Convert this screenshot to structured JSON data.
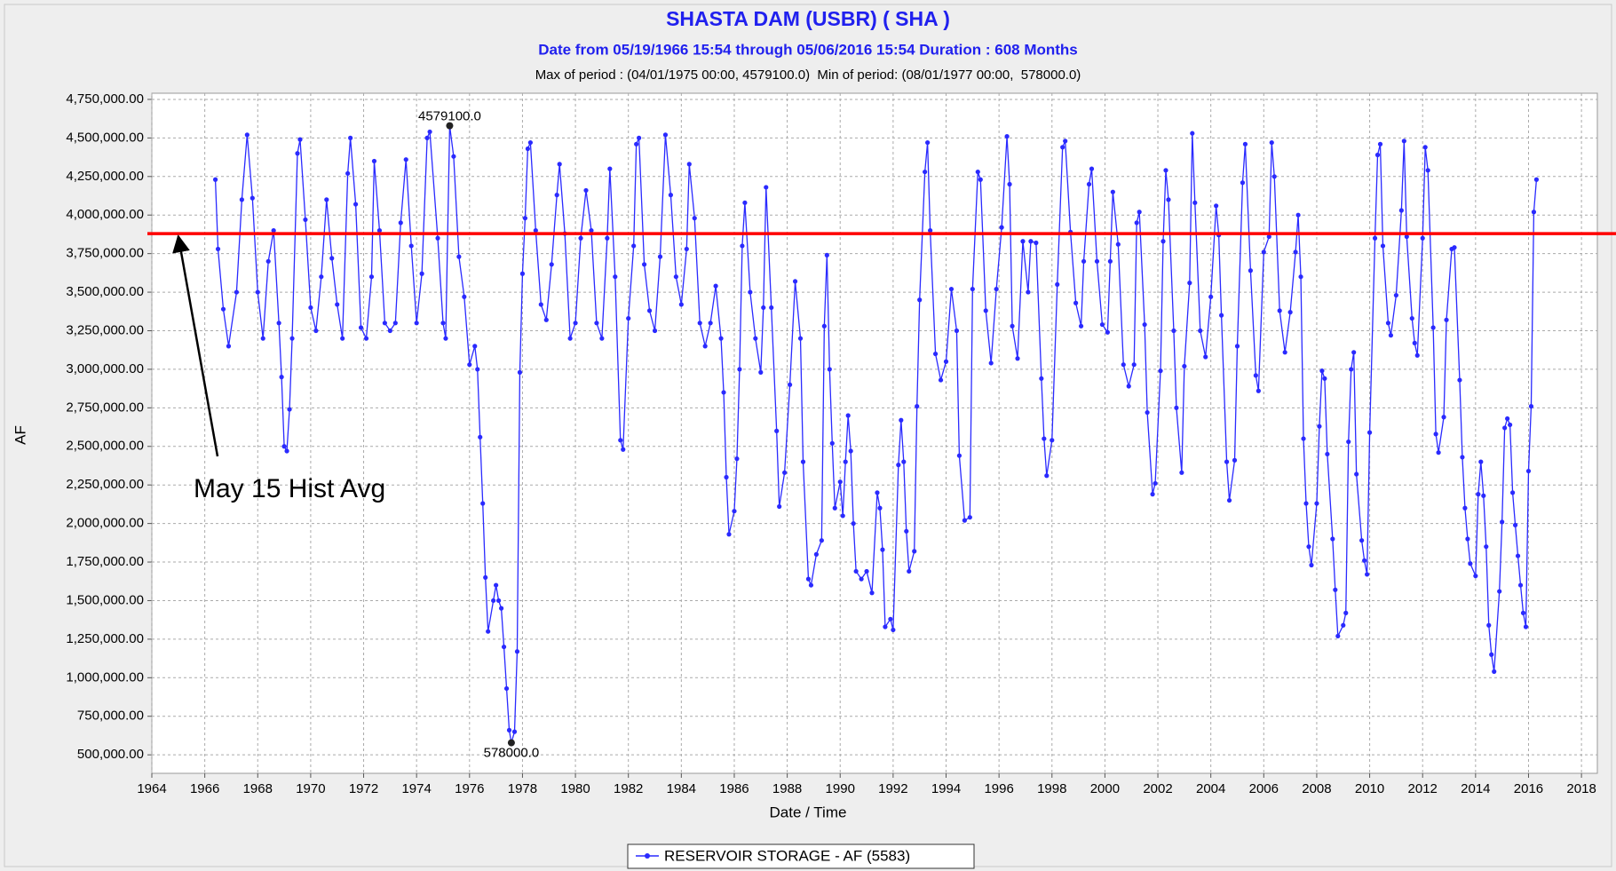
{
  "chart_data": {
    "type": "line",
    "title": "SHASTA DAM  (USBR) ( SHA )",
    "subtitle": "Date from 05/19/1966 15:54 through 05/06/2016 15:54 Duration : 608 Months",
    "period_note": "Max of period : (04/01/1975 00:00, 4579100.0)  Min of period: (08/01/1977 00:00,  578000.0)",
    "x_label": "Date / Time",
    "y_label": "AF",
    "xlim": [
      1964,
      2018.6
    ],
    "ylim": [
      380000,
      4790000
    ],
    "xticks": [
      1964,
      1966,
      1968,
      1970,
      1972,
      1974,
      1976,
      1978,
      1980,
      1982,
      1984,
      1986,
      1988,
      1990,
      1992,
      1994,
      1996,
      1998,
      2000,
      2002,
      2004,
      2006,
      2008,
      2010,
      2012,
      2014,
      2016,
      2018
    ],
    "yticks": [
      {
        "value": 500000,
        "label": "500,000.00"
      },
      {
        "value": 750000,
        "label": "750,000.00"
      },
      {
        "value": 1000000,
        "label": "1,000,000.00"
      },
      {
        "value": 1250000,
        "label": "1,250,000.00"
      },
      {
        "value": 1500000,
        "label": "1,500,000.00"
      },
      {
        "value": 1750000,
        "label": "1,750,000.00"
      },
      {
        "value": 2000000,
        "label": "2,000,000.00"
      },
      {
        "value": 2250000,
        "label": "2,250,000.00"
      },
      {
        "value": 2500000,
        "label": "2,500,000.00"
      },
      {
        "value": 2750000,
        "label": "2,750,000.00"
      },
      {
        "value": 3000000,
        "label": "3,000,000.00"
      },
      {
        "value": 3250000,
        "label": "3,250,000.00"
      },
      {
        "value": 3500000,
        "label": "3,500,000.00"
      },
      {
        "value": 3750000,
        "label": "3,750,000.00"
      },
      {
        "value": 4000000,
        "label": "4,000,000.00"
      },
      {
        "value": 4250000,
        "label": "4,250,000.00"
      },
      {
        "value": 4500000,
        "label": "4,500,000.00"
      },
      {
        "value": 4750000,
        "label": "4,750,000.00"
      }
    ],
    "grid": true,
    "legend": "bottom",
    "series": [
      {
        "name": "RESERVOIR STORAGE - AF (5583)",
        "color": "#2a2aff",
        "x": [
          1966.4,
          1966.5,
          1966.7,
          1966.9,
          1967.2,
          1967.4,
          1967.6,
          1967.8,
          1968.0,
          1968.2,
          1968.4,
          1968.6,
          1968.8,
          1968.9,
          1969.0,
          1969.1,
          1969.2,
          1969.3,
          1969.5,
          1969.6,
          1969.8,
          1970.0,
          1970.2,
          1970.4,
          1970.6,
          1970.8,
          1971.0,
          1971.2,
          1971.4,
          1971.5,
          1971.7,
          1971.9,
          1972.1,
          1972.3,
          1972.4,
          1972.6,
          1972.8,
          1973.0,
          1973.2,
          1973.4,
          1973.6,
          1973.8,
          1974.0,
          1974.2,
          1974.4,
          1974.5,
          1974.8,
          1975.0,
          1975.1,
          1975.25,
          1975.4,
          1975.6,
          1975.8,
          1976.0,
          1976.2,
          1976.3,
          1976.4,
          1976.5,
          1976.6,
          1976.7,
          1976.9,
          1977.0,
          1977.1,
          1977.2,
          1977.3,
          1977.4,
          1977.5,
          1977.58,
          1977.7,
          1977.8,
          1977.9,
          1978.0,
          1978.1,
          1978.2,
          1978.3,
          1978.5,
          1978.7,
          1978.9,
          1979.1,
          1979.3,
          1979.4,
          1979.6,
          1979.8,
          1980.0,
          1980.2,
          1980.4,
          1980.6,
          1980.8,
          1981.0,
          1981.2,
          1981.3,
          1981.5,
          1981.7,
          1981.8,
          1982.0,
          1982.2,
          1982.3,
          1982.4,
          1982.6,
          1982.8,
          1983.0,
          1983.2,
          1983.4,
          1983.6,
          1983.8,
          1984.0,
          1984.2,
          1984.3,
          1984.5,
          1984.7,
          1984.9,
          1985.1,
          1985.3,
          1985.5,
          1985.6,
          1985.7,
          1985.8,
          1986.0,
          1986.1,
          1986.2,
          1986.3,
          1986.4,
          1986.6,
          1986.8,
          1987.0,
          1987.1,
          1987.2,
          1987.4,
          1987.6,
          1987.7,
          1987.9,
          1988.1,
          1988.3,
          1988.5,
          1988.6,
          1988.8,
          1988.9,
          1989.1,
          1989.3,
          1989.4,
          1989.5,
          1989.6,
          1989.7,
          1989.8,
          1990.0,
          1990.1,
          1990.2,
          1990.3,
          1990.4,
          1990.5,
          1990.6,
          1990.8,
          1991.0,
          1991.2,
          1991.4,
          1991.5,
          1991.6,
          1991.7,
          1991.9,
          1992.0,
          1992.2,
          1992.3,
          1992.4,
          1992.5,
          1992.6,
          1992.8,
          1992.9,
          1993.0,
          1993.2,
          1993.3,
          1993.4,
          1993.6,
          1993.8,
          1994.0,
          1994.2,
          1994.4,
          1994.5,
          1994.7,
          1994.9,
          1995.0,
          1995.2,
          1995.3,
          1995.5,
          1995.7,
          1995.9,
          1996.1,
          1996.3,
          1996.4,
          1996.5,
          1996.7,
          1996.9,
          1997.1,
          1997.2,
          1997.4,
          1997.6,
          1997.7,
          1997.8,
          1998.0,
          1998.2,
          1998.4,
          1998.5,
          1998.7,
          1998.9,
          1999.1,
          1999.2,
          1999.4,
          1999.5,
          1999.7,
          1999.9,
          2000.1,
          2000.2,
          2000.3,
          2000.5,
          2000.7,
          2000.9,
          2001.1,
          2001.2,
          2001.3,
          2001.5,
          2001.6,
          2001.8,
          2001.9,
          2002.1,
          2002.2,
          2002.3,
          2002.4,
          2002.6,
          2002.7,
          2002.9,
          2003.0,
          2003.2,
          2003.3,
          2003.4,
          2003.6,
          2003.8,
          2004.0,
          2004.2,
          2004.3,
          2004.4,
          2004.6,
          2004.7,
          2004.9,
          2005.0,
          2005.2,
          2005.3,
          2005.5,
          2005.7,
          2005.8,
          2006.0,
          2006.2,
          2006.3,
          2006.4,
          2006.6,
          2006.8,
          2007.0,
          2007.2,
          2007.3,
          2007.4,
          2007.5,
          2007.6,
          2007.7,
          2007.8,
          2008.0,
          2008.1,
          2008.2,
          2008.3,
          2008.4,
          2008.6,
          2008.7,
          2008.8,
          2009.0,
          2009.1,
          2009.2,
          2009.3,
          2009.4,
          2009.5,
          2009.7,
          2009.8,
          2009.9,
          2010.0,
          2010.2,
          2010.3,
          2010.4,
          2010.5,
          2010.7,
          2010.8,
          2011.0,
          2011.2,
          2011.3,
          2011.4,
          2011.6,
          2011.7,
          2011.8,
          2012.0,
          2012.1,
          2012.2,
          2012.4,
          2012.5,
          2012.6,
          2012.8,
          2012.9,
          2013.1,
          2013.2,
          2013.4,
          2013.5,
          2013.6,
          2013.7,
          2013.8,
          2014.0,
          2014.1,
          2014.2,
          2014.3,
          2014.4,
          2014.5,
          2014.6,
          2014.7,
          2014.9,
          2015.0,
          2015.1,
          2015.2,
          2015.3,
          2015.4,
          2015.5,
          2015.6,
          2015.7,
          2015.8,
          2015.9,
          2016.0,
          2016.1,
          2016.2,
          2016.3
        ],
        "values": [
          4230000,
          3780000,
          3390000,
          3150000,
          3500000,
          4100000,
          4520000,
          4110000,
          3500000,
          3200000,
          3700000,
          3900000,
          3300000,
          2950000,
          2500000,
          2470000,
          2740000,
          3200000,
          4400000,
          4490000,
          3970000,
          3400000,
          3250000,
          3600000,
          4100000,
          3720000,
          3420000,
          3200000,
          4270000,
          4500000,
          4070000,
          3270000,
          3200000,
          3600000,
          4350000,
          3900000,
          3300000,
          3250000,
          3300000,
          3950000,
          4360000,
          3800000,
          3300000,
          3620000,
          4500000,
          4540000,
          3850000,
          3300000,
          3200000,
          4579100,
          4380000,
          3730000,
          3470000,
          3030000,
          3150000,
          3000000,
          2560000,
          2130000,
          1650000,
          1300000,
          1500000,
          1600000,
          1500000,
          1450000,
          1200000,
          930000,
          660000,
          578000,
          650000,
          1170000,
          2980000,
          3620000,
          3980000,
          4430000,
          4470000,
          3900000,
          3420000,
          3320000,
          3680000,
          4130000,
          4330000,
          3880000,
          3200000,
          3300000,
          3850000,
          4160000,
          3900000,
          3300000,
          3200000,
          3850000,
          4300000,
          3600000,
          2540000,
          2480000,
          3330000,
          3800000,
          4460000,
          4500000,
          3680000,
          3380000,
          3250000,
          3730000,
          4520000,
          4130000,
          3600000,
          3420000,
          3780000,
          4330000,
          3980000,
          3300000,
          3150000,
          3300000,
          3540000,
          3200000,
          2850000,
          2300000,
          1930000,
          2080000,
          2420000,
          3000000,
          3800000,
          4080000,
          3500000,
          3200000,
          2980000,
          3400000,
          4180000,
          3400000,
          2600000,
          2110000,
          2330000,
          2900000,
          3570000,
          3200000,
          2400000,
          1640000,
          1600000,
          1800000,
          1890000,
          3280000,
          3740000,
          3000000,
          2520000,
          2100000,
          2270000,
          2050000,
          2400000,
          2700000,
          2470000,
          2000000,
          1690000,
          1640000,
          1690000,
          1550000,
          2200000,
          2100000,
          1830000,
          1330000,
          1380000,
          1310000,
          2380000,
          2670000,
          2400000,
          1950000,
          1690000,
          1820000,
          2760000,
          3450000,
          4280000,
          4470000,
          3900000,
          3100000,
          2930000,
          3050000,
          3520000,
          3250000,
          2440000,
          2020000,
          2040000,
          3520000,
          4280000,
          4230000,
          3380000,
          3040000,
          3520000,
          3920000,
          4510000,
          4200000,
          3280000,
          3070000,
          3830000,
          3500000,
          3830000,
          3820000,
          2940000,
          2550000,
          2310000,
          2540000,
          3550000,
          4440000,
          4480000,
          3890000,
          3430000,
          3280000,
          3700000,
          4200000,
          4300000,
          3700000,
          3290000,
          3240000,
          3700000,
          4150000,
          3810000,
          3030000,
          2890000,
          3030000,
          3950000,
          4020000,
          3290000,
          2720000,
          2190000,
          2260000,
          2990000,
          3830000,
          4290000,
          4100000,
          3250000,
          2750000,
          2330000,
          3020000,
          3560000,
          4530000,
          4080000,
          3250000,
          3080000,
          3470000,
          4060000,
          3870000,
          3350000,
          2400000,
          2150000,
          2410000,
          3150000,
          4210000,
          4460000,
          3640000,
          2960000,
          2860000,
          3760000,
          3860000,
          4470000,
          4250000,
          3380000,
          3110000,
          3370000,
          3760000,
          4000000,
          3600000,
          2550000,
          2130000,
          1850000,
          1730000,
          2130000,
          2630000,
          2990000,
          2940000,
          2450000,
          1900000,
          1570000,
          1270000,
          1340000,
          1420000,
          2530000,
          3000000,
          3110000,
          2320000,
          1890000,
          1760000,
          1670000,
          2590000,
          3850000,
          4390000,
          4460000,
          3800000,
          3300000,
          3220000,
          3480000,
          4030000,
          4480000,
          3860000,
          3330000,
          3170000,
          3090000,
          3850000,
          4440000,
          4290000,
          3270000,
          2580000,
          2460000,
          2690000,
          3320000,
          3780000,
          3790000,
          2930000,
          2430000,
          2100000,
          1900000,
          1740000,
          1660000,
          2190000,
          2400000,
          2180000,
          1850000,
          1340000,
          1150000,
          1040000,
          1560000,
          2010000,
          2620000,
          2680000,
          2640000,
          2200000,
          1990000,
          1790000,
          1600000,
          1420000,
          1330000,
          2340000,
          2760000,
          4020000,
          4230000
        ]
      }
    ],
    "point_labels": [
      {
        "x": 1975.25,
        "value": 4579100,
        "label": "4579100.0"
      },
      {
        "x": 1977.58,
        "value": 578000,
        "label": "578000.0"
      }
    ],
    "reference_line": {
      "value": 3880000,
      "color": "#ff0000",
      "label": "May 15 Hist Avg",
      "x": 1965
    }
  }
}
